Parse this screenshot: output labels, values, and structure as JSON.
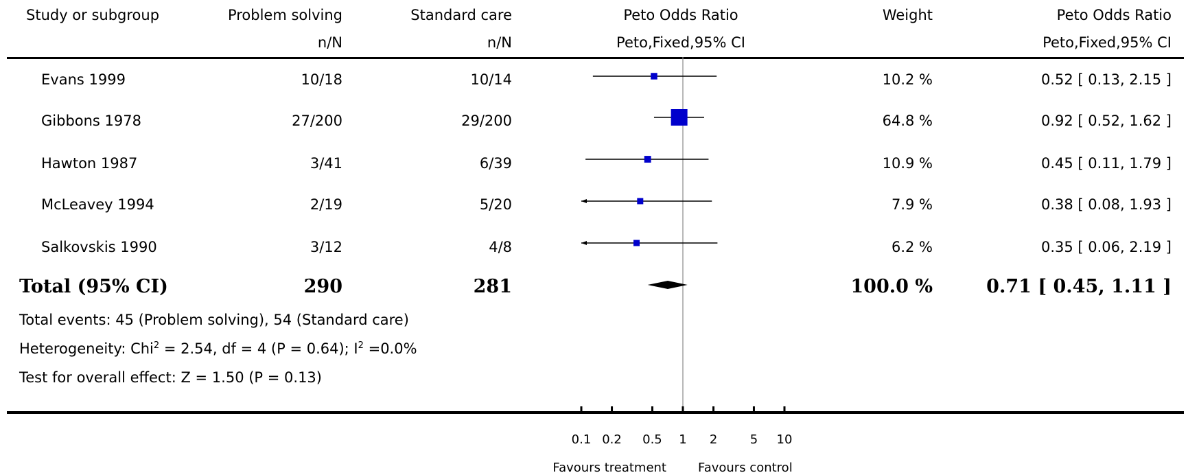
{
  "header": {
    "study": "Study or subgroup",
    "group1": "Problem solving",
    "group1_sub": "n/N",
    "group2": "Standard care",
    "group2_sub": "n/N",
    "plot": "Peto Odds Ratio",
    "plot_sub": "Peto,Fixed,95% CI",
    "weight": "Weight",
    "result": "Peto Odds Ratio",
    "result_sub": "Peto,Fixed,95% CI"
  },
  "total": {
    "label": "Total (95% CI)",
    "n1": "290",
    "n2": "281",
    "weight": "100.0 %",
    "ci": "0.71 [ 0.45, 1.11 ]"
  },
  "notes": {
    "events": "Total events: 45 (Problem solving), 54 (Standard care)",
    "heterogeneity_pre": "Heterogeneity: Chi",
    "heterogeneity_sup1": "2",
    "heterogeneity_mid": " = 2.54, df = 4 (P = 0.64); I",
    "heterogeneity_sup2": "2",
    "heterogeneity_post": " =0.0%",
    "overall": "Test for overall effect: Z = 1.50 (P = 0.13)"
  },
  "axis": {
    "left_label": "Favours treatment",
    "right_label": "Favours control"
  },
  "chart_data": {
    "type": "forest",
    "scale": "log",
    "xlim": [
      0.1,
      10
    ],
    "ticks": [
      {
        "value": 0.1,
        "label": "0.1"
      },
      {
        "value": 0.2,
        "label": "0.2"
      },
      {
        "value": 0.5,
        "label": "0.5"
      },
      {
        "value": 1,
        "label": "1"
      },
      {
        "value": 2,
        "label": "2"
      },
      {
        "value": 5,
        "label": "5"
      },
      {
        "value": 10,
        "label": "10"
      }
    ],
    "reference_line": 1,
    "studies": [
      {
        "name": "Evans 1999",
        "n1": "10/18",
        "n2": "10/14",
        "or": 0.52,
        "lo": 0.13,
        "hi": 2.15,
        "weight": 10.2,
        "weight_text": "10.2 %",
        "ci_text": "0.52 [ 0.13, 2.15 ]"
      },
      {
        "name": "Gibbons 1978",
        "n1": "27/200",
        "n2": "29/200",
        "or": 0.92,
        "lo": 0.52,
        "hi": 1.62,
        "weight": 64.8,
        "weight_text": "64.8 %",
        "ci_text": "0.92 [ 0.52, 1.62 ]"
      },
      {
        "name": "Hawton 1987",
        "n1": "3/41",
        "n2": "6/39",
        "or": 0.45,
        "lo": 0.11,
        "hi": 1.79,
        "weight": 10.9,
        "weight_text": "10.9 %",
        "ci_text": "0.45 [ 0.11, 1.79 ]"
      },
      {
        "name": "McLeavey 1994",
        "n1": "2/19",
        "n2": "5/20",
        "or": 0.38,
        "lo": 0.08,
        "hi": 1.93,
        "weight": 7.9,
        "weight_text": "7.9 %",
        "ci_text": "0.38 [ 0.08, 1.93 ]"
      },
      {
        "name": "Salkovskis 1990",
        "n1": "3/12",
        "n2": "4/8",
        "or": 0.35,
        "lo": 0.06,
        "hi": 2.19,
        "weight": 6.2,
        "weight_text": "6.2 %",
        "ci_text": "0.35 [ 0.06, 2.19 ]"
      }
    ],
    "pooled": {
      "or": 0.71,
      "lo": 0.45,
      "hi": 1.11
    },
    "colors": {
      "marker": "#0000cc",
      "line": "#000000",
      "reference": "#888888"
    }
  }
}
